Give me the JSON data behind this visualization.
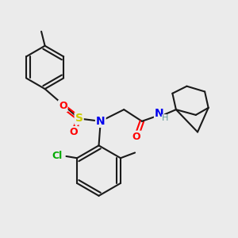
{
  "bg_color": "#ebebeb",
  "bond_color": "#1a1a1a",
  "atom_colors": {
    "O": "#ff0000",
    "N": "#0000ee",
    "S": "#cccc00",
    "Cl": "#00aa00",
    "H": "#669999"
  },
  "figsize": [
    3.0,
    3.0
  ],
  "dpi": 100
}
